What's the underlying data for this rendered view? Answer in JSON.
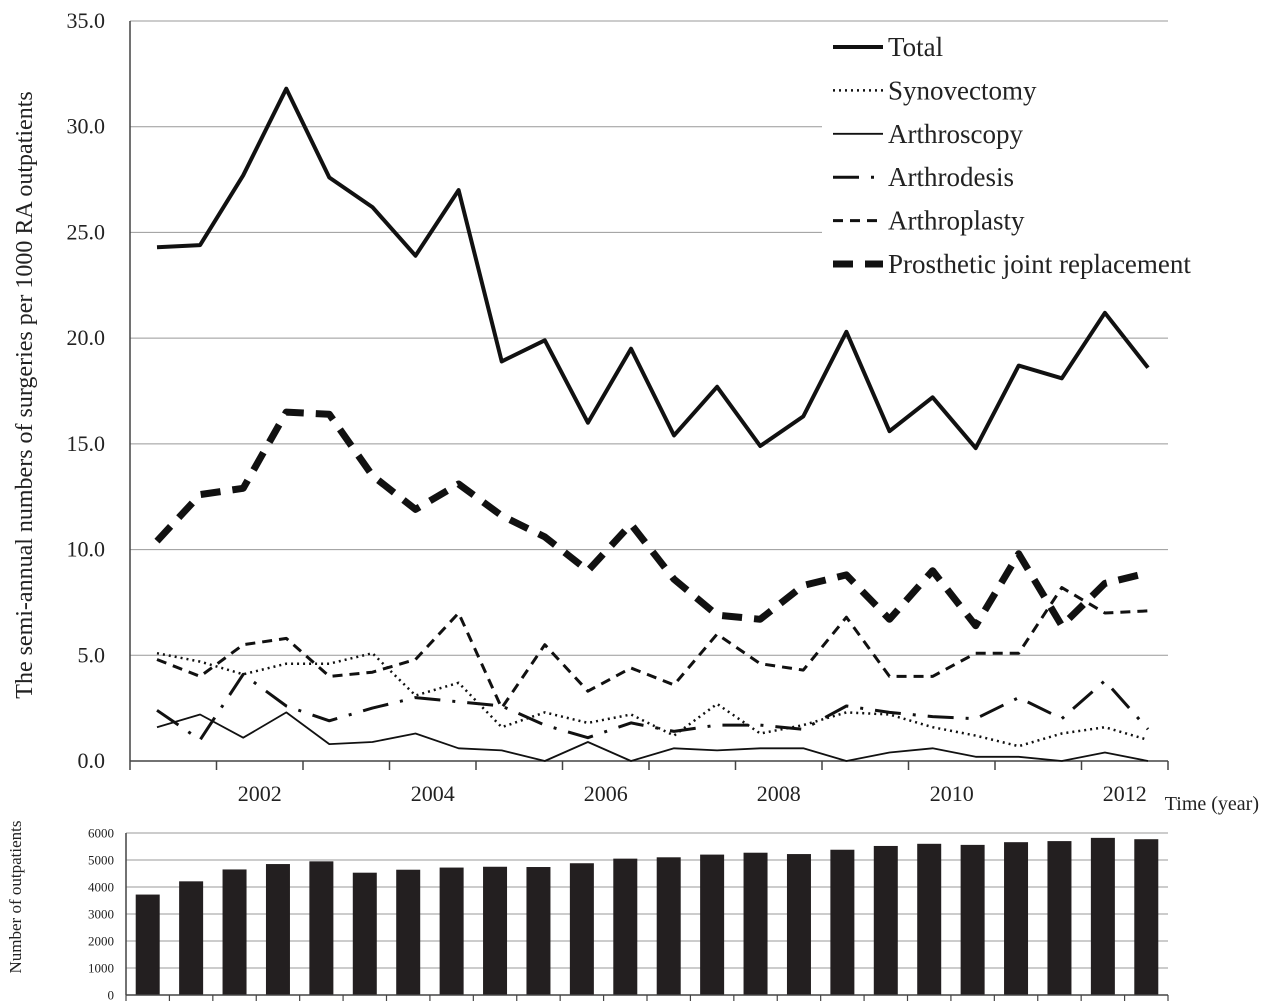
{
  "chart_data": [
    {
      "type": "line",
      "ylabel": "The semi-annual numbers of surgeries per 1000 RA outpatients",
      "xlabel": "Time (year)",
      "ylim": [
        0,
        35
      ],
      "yticks": [
        "0.0",
        "5.0",
        "10.0",
        "15.0",
        "20.0",
        "25.0",
        "30.0",
        "35.0"
      ],
      "ytick_values": [
        0,
        5,
        10,
        15,
        20,
        25,
        30,
        35
      ],
      "x": [
        2001.0,
        2001.5,
        2002.0,
        2002.5,
        2003.0,
        2003.5,
        2004.0,
        2004.5,
        2005.0,
        2005.5,
        2006.0,
        2006.5,
        2007.0,
        2007.5,
        2008.0,
        2008.5,
        2009.0,
        2009.5,
        2010.0,
        2010.5,
        2011.0,
        2011.5,
        2012.0,
        2012.5
      ],
      "xticks": [
        "2002",
        "2004",
        "2006",
        "2008",
        "2010",
        "2012"
      ],
      "xtick_values": [
        2002,
        2004,
        2006,
        2008,
        2010,
        2012
      ],
      "grid": "horizontal",
      "legend_position": "top-right",
      "series": [
        {
          "name": "Total",
          "style": "solid-thick",
          "values": [
            24.3,
            24.4,
            27.7,
            31.8,
            27.6,
            26.2,
            23.9,
            27.0,
            18.9,
            19.9,
            16.0,
            19.5,
            15.4,
            17.7,
            14.9,
            16.3,
            20.3,
            15.6,
            17.2,
            14.8,
            18.7,
            18.1,
            21.2,
            18.6
          ]
        },
        {
          "name": "Synovectomy",
          "style": "dotted",
          "values": [
            5.1,
            4.7,
            4.1,
            4.6,
            4.6,
            5.1,
            3.1,
            3.7,
            1.6,
            2.3,
            1.8,
            2.2,
            1.2,
            2.7,
            1.3,
            1.7,
            2.3,
            2.2,
            1.6,
            1.2,
            0.7,
            1.3,
            1.6,
            1.0
          ]
        },
        {
          "name": "Arthroscopy",
          "style": "solid-thin",
          "values": [
            1.6,
            2.2,
            1.1,
            2.3,
            0.8,
            0.9,
            1.3,
            0.6,
            0.5,
            0.0,
            0.9,
            0.0,
            0.6,
            0.5,
            0.6,
            0.6,
            0.0,
            0.4,
            0.6,
            0.2,
            0.2,
            0.0,
            0.4,
            0.0
          ]
        },
        {
          "name": "Arthrodesis",
          "style": "dash-dot",
          "values": [
            2.4,
            1.0,
            4.1,
            2.6,
            1.9,
            2.5,
            3.0,
            2.8,
            2.6,
            1.7,
            1.1,
            1.8,
            1.4,
            1.7,
            1.7,
            1.5,
            2.6,
            2.3,
            2.1,
            2.0,
            3.0,
            2.0,
            3.8,
            1.5
          ]
        },
        {
          "name": "Arthroplasty",
          "style": "dashed",
          "values": [
            4.8,
            4.0,
            5.5,
            5.8,
            4.0,
            4.2,
            4.8,
            7.0,
            2.5,
            5.5,
            3.3,
            4.4,
            3.6,
            6.0,
            4.6,
            4.3,
            6.8,
            4.0,
            4.0,
            5.1,
            5.1,
            8.2,
            7.0,
            7.1
          ]
        },
        {
          "name": "Prosthetic joint replacement",
          "style": "dashed-thick",
          "values": [
            10.4,
            12.6,
            12.9,
            16.5,
            16.4,
            13.5,
            11.9,
            13.1,
            11.6,
            10.6,
            9.0,
            11.2,
            8.6,
            6.9,
            6.7,
            8.3,
            8.8,
            6.7,
            9.0,
            6.4,
            9.8,
            6.4,
            8.4,
            8.9
          ]
        }
      ]
    },
    {
      "type": "bar",
      "ylabel": "Number of outpatients",
      "ylim": [
        0,
        6000
      ],
      "yticks": [
        "0",
        "1000",
        "2000",
        "3000",
        "4000",
        "5000",
        "6000"
      ],
      "ytick_values": [
        0,
        1000,
        2000,
        3000,
        4000,
        5000,
        6000
      ],
      "grid": "horizontal",
      "values": [
        3720,
        4210,
        4650,
        4850,
        4950,
        4530,
        4640,
        4720,
        4750,
        4740,
        4880,
        5050,
        5100,
        5200,
        5270,
        5220,
        5380,
        5520,
        5600,
        5560,
        5660,
        5700,
        5820,
        5770
      ]
    }
  ]
}
